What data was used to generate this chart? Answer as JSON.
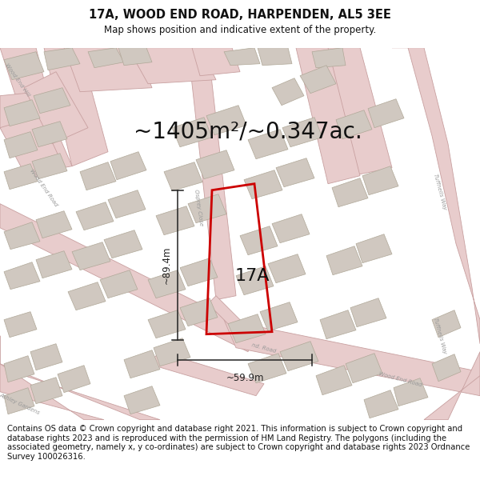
{
  "title": "17A, WOOD END ROAD, HARPENDEN, AL5 3EE",
  "subtitle": "Map shows position and indicative extent of the property.",
  "area_label": "~1405m²/~0.347ac.",
  "property_label": "17A",
  "dim_vertical": "~89.4m",
  "dim_horizontal": "~59.9m",
  "footer": "Contains OS data © Crown copyright and database right 2021. This information is subject to Crown copyright and database rights 2023 and is reproduced with the permission of HM Land Registry. The polygons (including the associated geometry, namely x, y co-ordinates) are subject to Crown copyright and database rights 2023 Ordnance Survey 100026316.",
  "map_bg": "#f2efed",
  "road_fill": "#e8cccc",
  "road_edge": "#c8a0a0",
  "bld_fill": "#d0c8c0",
  "bld_edge": "#b0a898",
  "prop_color": "#cc0000",
  "dim_color": "#222222",
  "text_color": "#111111",
  "road_text_color": "#999999",
  "title_fontsize": 10.5,
  "subtitle_fontsize": 8.5,
  "area_fontsize": 20,
  "label_fontsize": 16,
  "footer_fontsize": 7.2,
  "dim_fontsize": 8.5
}
